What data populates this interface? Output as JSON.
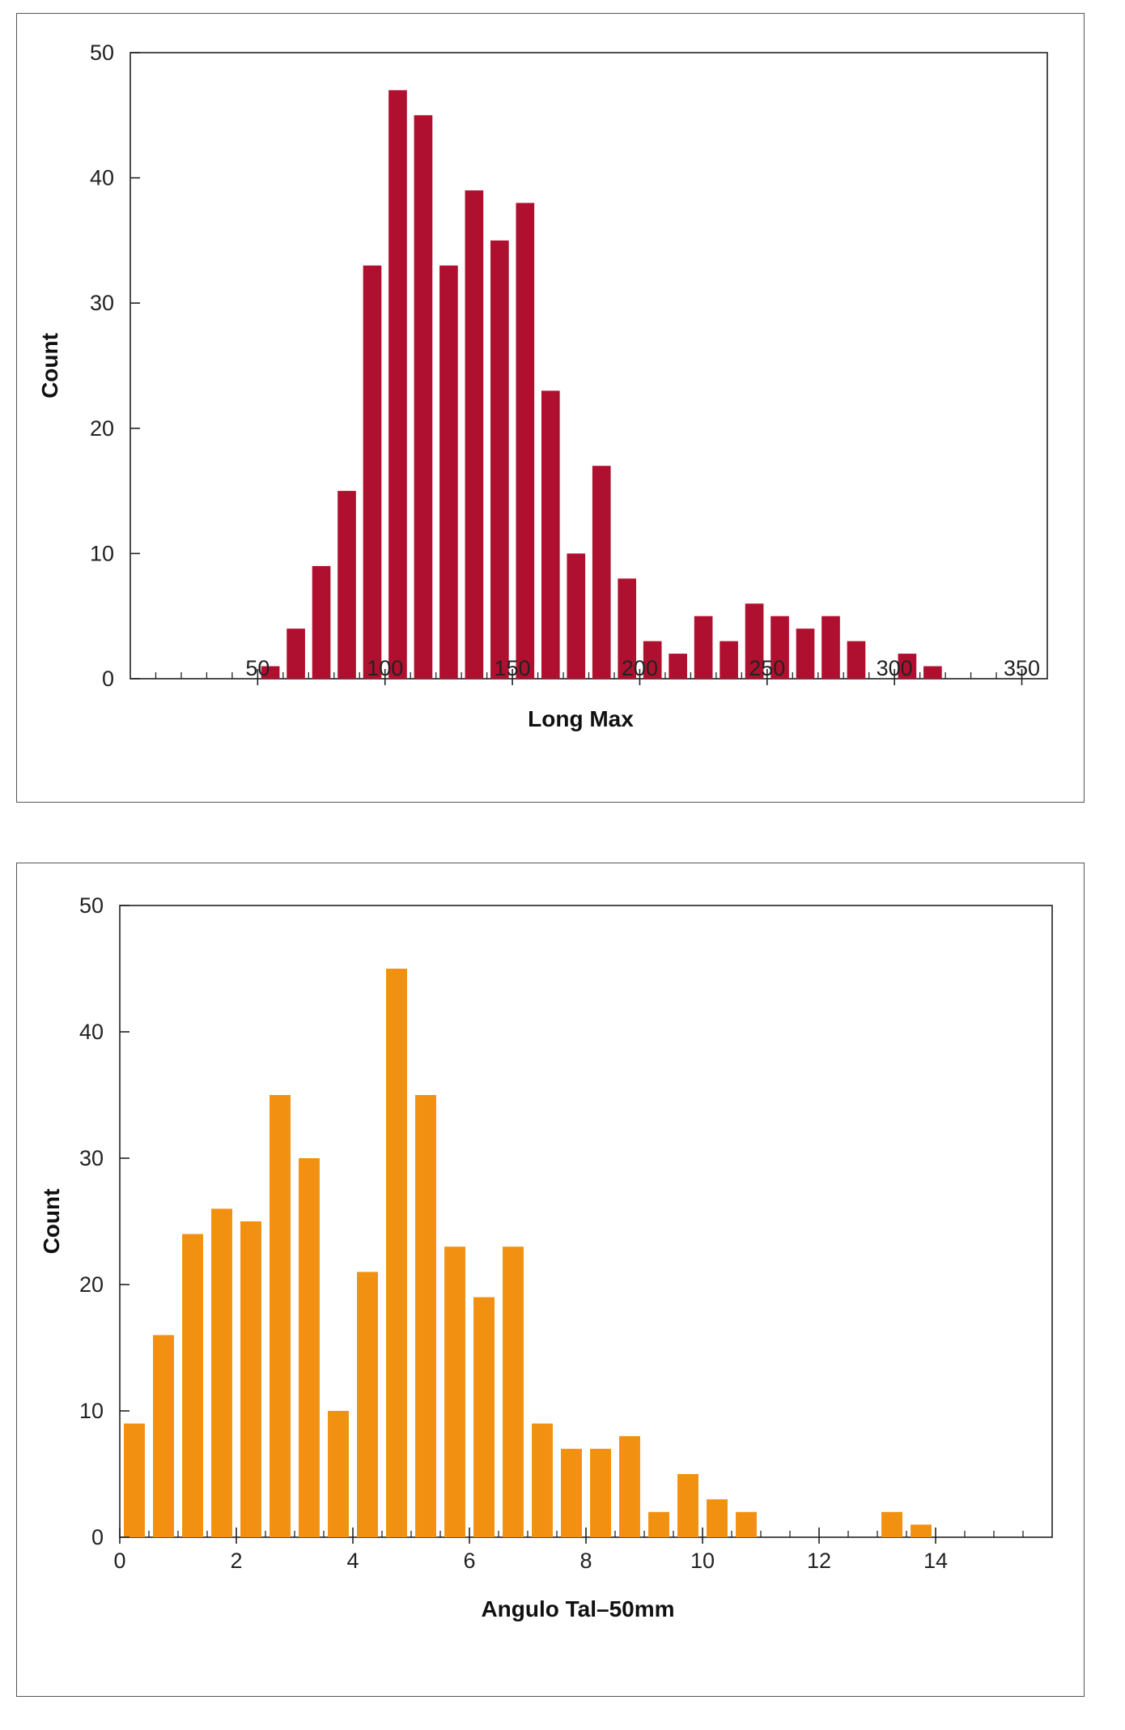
{
  "chart_data": [
    {
      "type": "bar",
      "title": "",
      "xlabel": "Long Max",
      "ylabel": "Count",
      "xlim": [
        0,
        360
      ],
      "ylim": [
        0,
        50
      ],
      "xticks": [
        50,
        100,
        150,
        200,
        250,
        300,
        350
      ],
      "yticks": [
        0,
        10,
        20,
        30,
        40,
        50
      ],
      "bar_color": "#b0102f",
      "bin_width": 10,
      "x": [
        55,
        65,
        75,
        85,
        95,
        105,
        115,
        125,
        135,
        145,
        155,
        165,
        175,
        185,
        195,
        205,
        215,
        225,
        235,
        245,
        255,
        265,
        275,
        285,
        295,
        305,
        315
      ],
      "values": [
        1,
        4,
        9,
        15,
        33,
        47,
        45,
        33,
        39,
        35,
        38,
        23,
        10,
        17,
        8,
        3,
        2,
        5,
        3,
        6,
        5,
        4,
        5,
        3,
        0,
        2,
        1
      ]
    },
    {
      "type": "bar",
      "title": "",
      "xlabel": "Angulo Tal–50mm",
      "ylabel": "Count",
      "xlim": [
        0,
        16
      ],
      "ylim": [
        0,
        50
      ],
      "xticks": [
        0,
        2,
        4,
        6,
        8,
        10,
        12,
        14
      ],
      "yticks": [
        0,
        10,
        20,
        30,
        40,
        50
      ],
      "bar_color": "#f29111",
      "bin_width": 0.5,
      "x": [
        0.25,
        0.75,
        1.25,
        1.75,
        2.25,
        2.75,
        3.25,
        3.75,
        4.25,
        4.75,
        5.25,
        5.75,
        6.25,
        6.75,
        7.25,
        7.75,
        8.25,
        8.75,
        9.25,
        9.75,
        10.25,
        10.75,
        11.25,
        11.75,
        12.25,
        12.75,
        13.25,
        13.75
      ],
      "values": [
        9,
        16,
        24,
        26,
        25,
        35,
        30,
        10,
        21,
        45,
        35,
        23,
        19,
        23,
        9,
        7,
        7,
        8,
        2,
        5,
        3,
        2,
        0,
        0,
        0,
        0,
        2,
        1
      ]
    }
  ]
}
